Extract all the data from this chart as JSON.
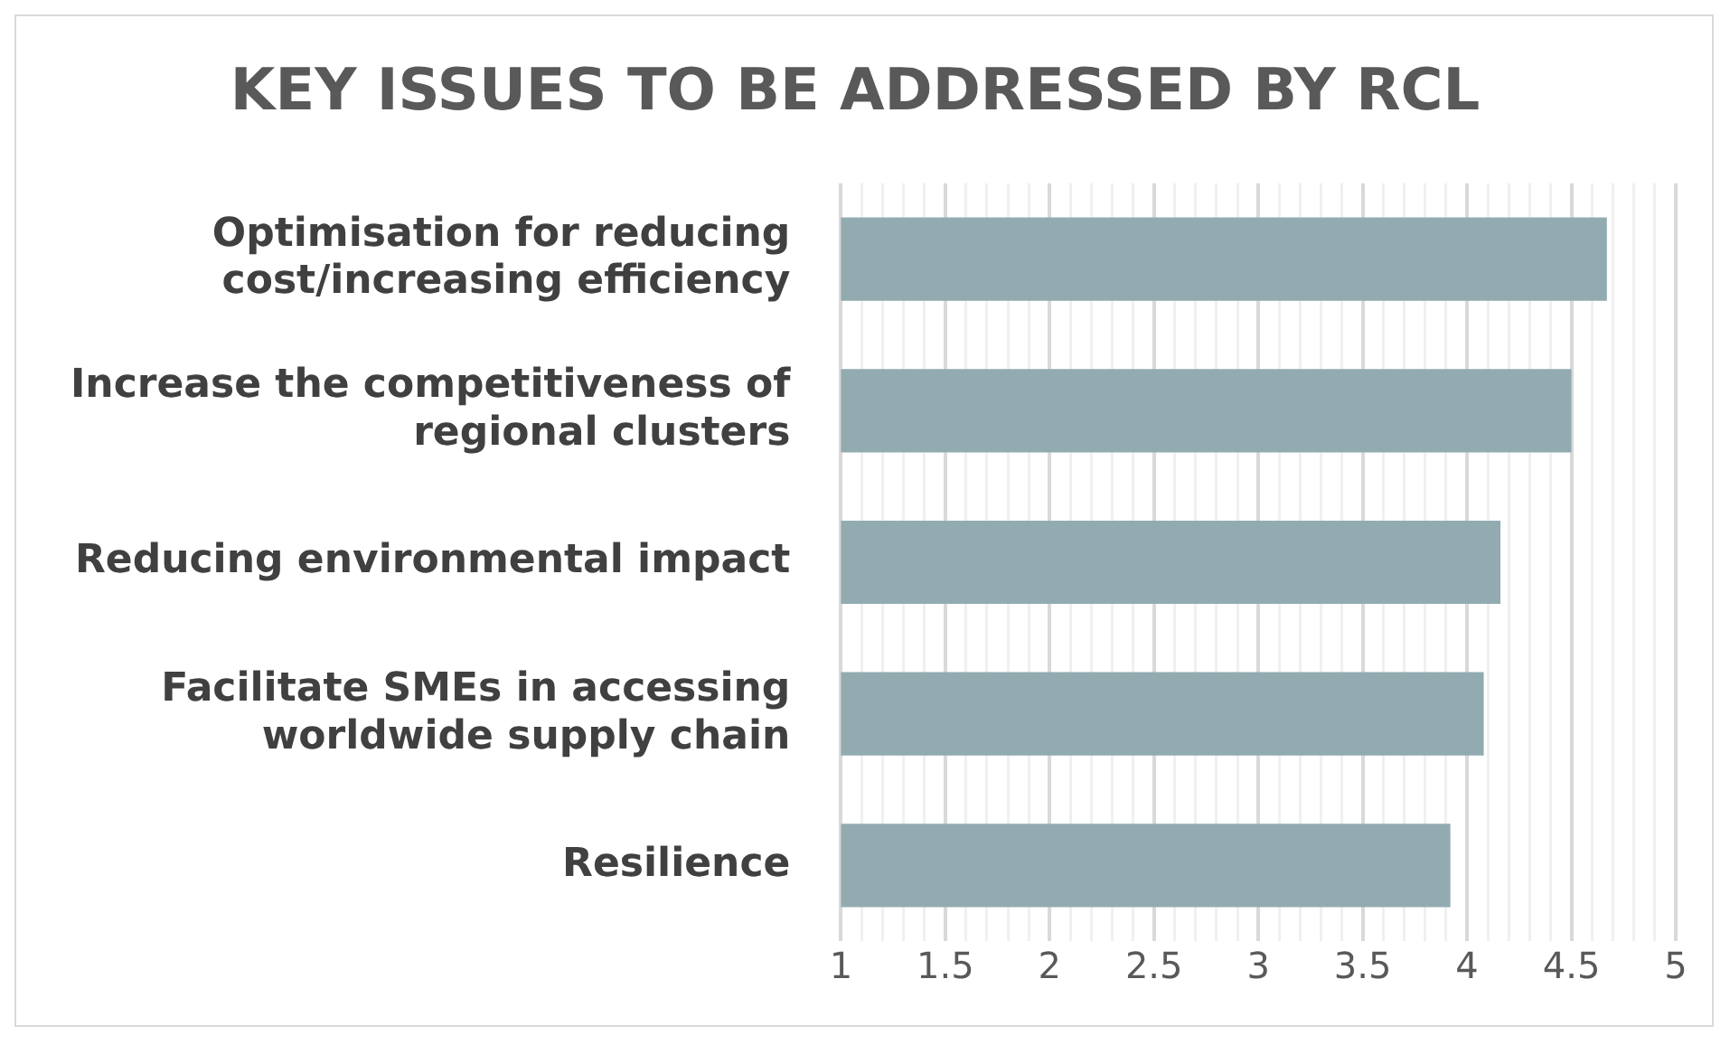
{
  "chart_data": {
    "type": "bar",
    "orientation": "horizontal",
    "title": "KEY ISSUES TO BE ADDRESSED BY RCL",
    "categories": [
      "Optimisation for reducing cost/increasing efficiency",
      "Increase the competitiveness of regional clusters",
      "Reducing environmental impact",
      "Facilitate SMEs in accessing worldwide supply chain",
      "Resilience"
    ],
    "values": [
      4.67,
      4.5,
      4.16,
      4.08,
      3.92
    ],
    "color": "#92abb1",
    "xlim": [
      1,
      5
    ],
    "xticks": [
      1,
      {
        "value": 1.1,
        "label": null
      },
      {
        "value": 1.2,
        "label": null
      },
      {
        "value": 1.3,
        "label": null
      },
      {
        "value": 1.4,
        "label": null
      },
      1.5,
      {
        "value": 1.6,
        "label": null
      },
      {
        "value": 1.7,
        "label": null
      },
      {
        "value": 1.8,
        "label": null
      },
      {
        "value": 1.9,
        "label": null
      },
      2,
      {
        "value": 2.1,
        "label": null
      },
      {
        "value": 2.2,
        "label": null
      },
      {
        "value": 2.3,
        "label": null
      },
      {
        "value": 2.4,
        "label": null
      },
      2.5,
      {
        "value": 2.6,
        "label": null
      },
      {
        "value": 2.7,
        "label": null
      },
      {
        "value": 2.8,
        "label": null
      },
      {
        "value": 2.9,
        "label": null
      },
      3,
      {
        "value": 3.1,
        "label": null
      },
      {
        "value": 3.2,
        "label": null
      },
      {
        "value": 3.3,
        "label": null
      },
      {
        "value": 3.4,
        "label": null
      },
      3.5,
      {
        "value": 3.6,
        "label": null
      },
      {
        "value": 3.7,
        "label": null
      },
      {
        "value": 3.8,
        "label": null
      },
      {
        "value": 3.9,
        "label": null
      },
      4,
      {
        "value": 4.1,
        "label": null
      },
      {
        "value": 4.2,
        "label": null
      },
      {
        "value": 4.3,
        "label": null
      },
      {
        "value": 4.4,
        "label": null
      },
      4.5,
      {
        "value": 4.6,
        "label": null
      },
      {
        "value": 4.7,
        "label": null
      },
      {
        "value": 4.8,
        "label": null
      },
      {
        "value": 4.9,
        "label": null
      },
      5
    ],
    "grid": "x",
    "legend": false
  }
}
